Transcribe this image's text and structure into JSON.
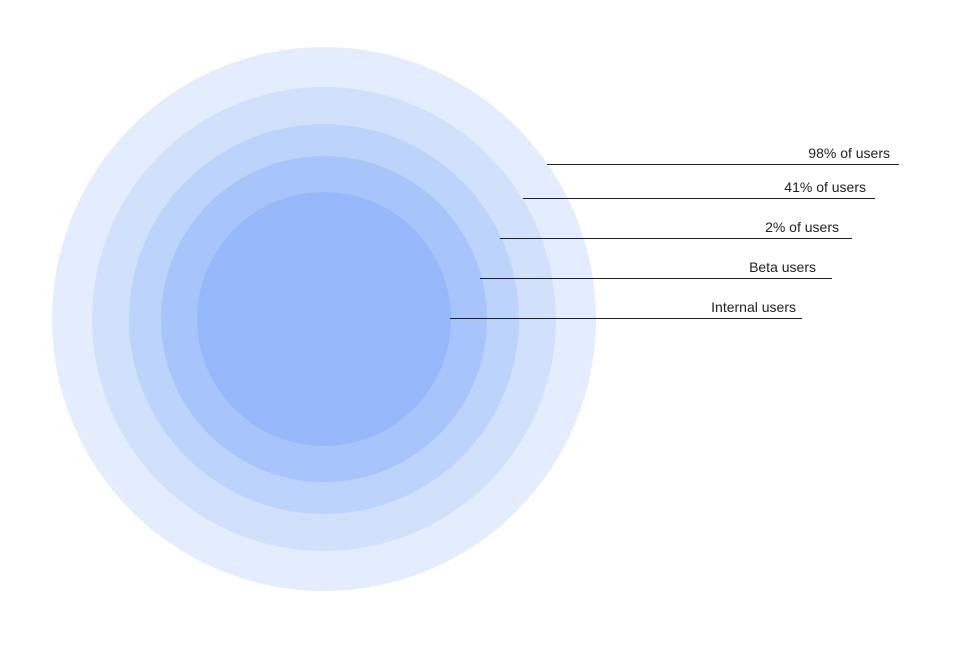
{
  "rings": [
    {
      "label": "98% of users",
      "color": "#e3edfd"
    },
    {
      "label": "41% of users",
      "color": "#d1e1fc"
    },
    {
      "label": "2% of users",
      "color": "#bcd3fc"
    },
    {
      "label": "Beta users",
      "color": "#a7c4fb"
    },
    {
      "label": "Internal users",
      "color": "#97b9fb"
    }
  ]
}
